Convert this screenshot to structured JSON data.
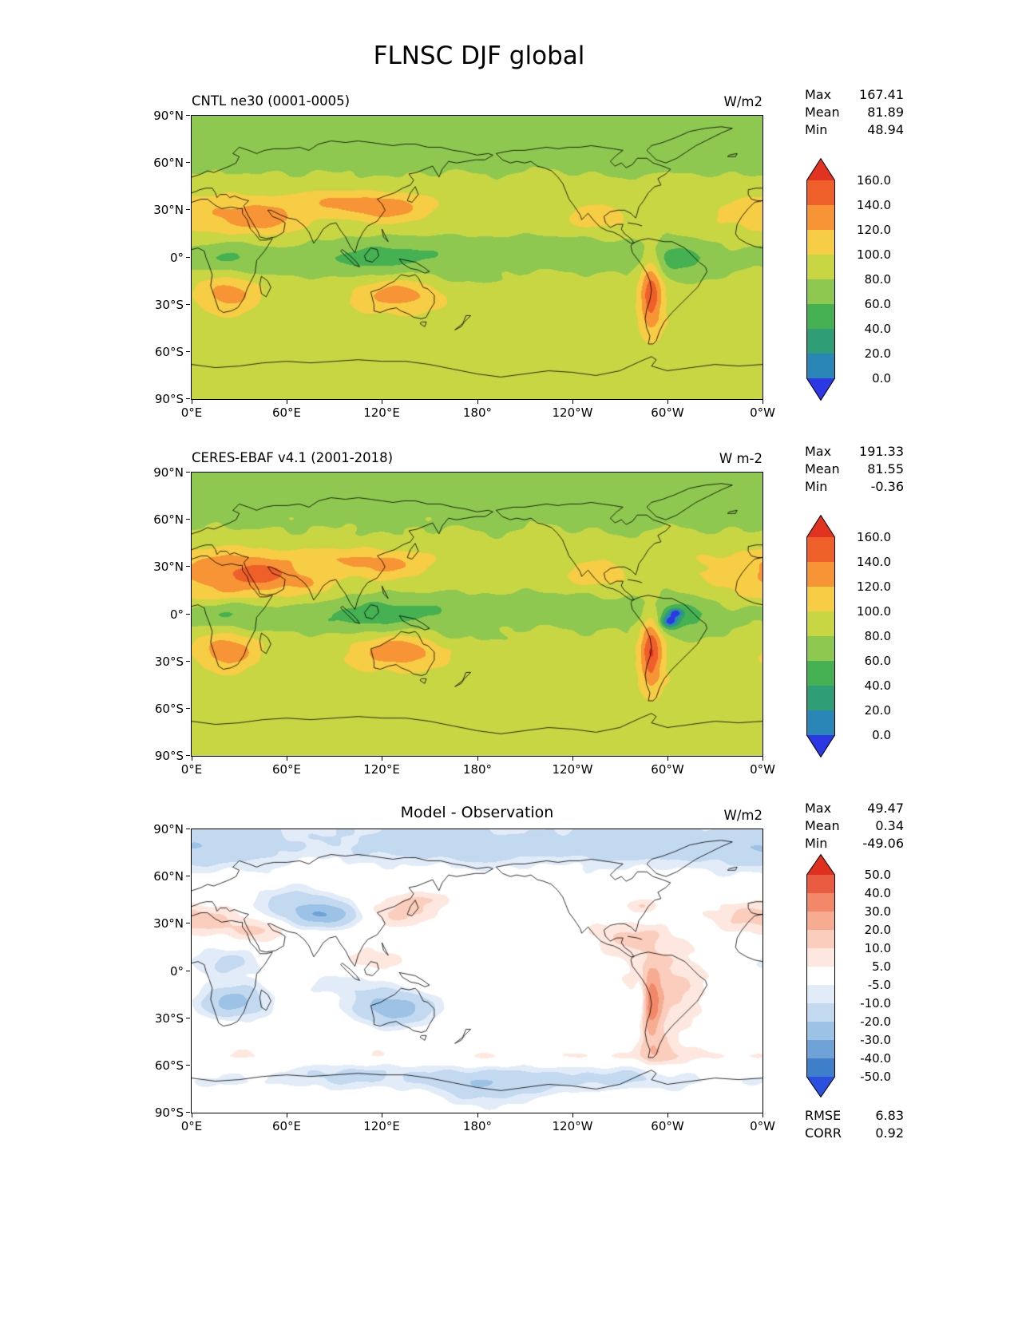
{
  "title": "FLNSC DJF global",
  "chart_data": {
    "type": "heatmap",
    "variable": "FLNSC",
    "season": "DJF",
    "region": "global",
    "x_axis": {
      "ticks": [
        "0°E",
        "60°E",
        "120°E",
        "180°",
        "120°W",
        "60°W",
        "0°W"
      ]
    },
    "y_axis": {
      "ticks": [
        "90°N",
        "60°N",
        "30°N",
        "0°",
        "30°S",
        "60°S",
        "90°S"
      ]
    },
    "panels": [
      {
        "subtitle": "CNTL ne30 (0001-0005)",
        "units": "W/m2",
        "stats": [
          {
            "label": "Max",
            "value": "167.41"
          },
          {
            "label": "Mean",
            "value": "81.89"
          },
          {
            "label": "Min",
            "value": "48.94"
          }
        ],
        "colorbar": {
          "bounds": [
            0,
            20,
            40,
            60,
            80,
            100,
            120,
            140,
            160
          ],
          "labels": [
            "160.0",
            "140.0",
            "120.0",
            "100.0",
            "80.0",
            "60.0",
            "40.0",
            "20.0",
            "0.0"
          ],
          "colors": [
            "#e23222",
            "#ef5f2a",
            "#f79435",
            "#f6cd45",
            "#c8d644",
            "#8ec850",
            "#45b152",
            "#2f9e77",
            "#2b86b8",
            "#2b38e3"
          ],
          "extend": "both"
        }
      },
      {
        "subtitle": "CERES-EBAF v4.1 (2001-2018)",
        "units": "W m-2",
        "stats": [
          {
            "label": "Max",
            "value": "191.33"
          },
          {
            "label": "Mean",
            "value": "81.55"
          },
          {
            "label": "Min",
            "value": "-0.36"
          }
        ],
        "colorbar": {
          "bounds": [
            0,
            20,
            40,
            60,
            80,
            100,
            120,
            140,
            160
          ],
          "labels": [
            "160.0",
            "140.0",
            "120.0",
            "100.0",
            "80.0",
            "60.0",
            "40.0",
            "20.0",
            "0.0"
          ],
          "colors": [
            "#e23222",
            "#ef5f2a",
            "#f79435",
            "#f6cd45",
            "#c8d644",
            "#8ec850",
            "#45b152",
            "#2f9e77",
            "#2b86b8",
            "#2b38e3"
          ],
          "extend": "both"
        }
      },
      {
        "subtitle": "Model - Observation",
        "units": "W/m2",
        "stats": [
          {
            "label": "Max",
            "value": "49.47"
          },
          {
            "label": "Mean",
            "value": "0.34"
          },
          {
            "label": "Min",
            "value": "-49.06"
          }
        ],
        "extra_stats": [
          {
            "label": "RMSE",
            "value": "6.83"
          },
          {
            "label": "CORR",
            "value": "0.92"
          }
        ],
        "colorbar": {
          "bounds": [
            -50,
            -40,
            -30,
            -20,
            -10,
            -5,
            5,
            10,
            20,
            30,
            40,
            50
          ],
          "labels": [
            "50.0",
            "40.0",
            "30.0",
            "20.0",
            "10.0",
            "5.0",
            "-5.0",
            "-10.0",
            "-20.0",
            "-30.0",
            "-40.0",
            "-50.0"
          ],
          "colors": [
            "#df2f1e",
            "#ea5c42",
            "#f28869",
            "#f7ac92",
            "#fbcdbc",
            "#fde7de",
            "#ffffff",
            "#e2ecf8",
            "#c3d9f0",
            "#9cc2e6",
            "#6fa3d8",
            "#3f7fc9",
            "#2b50e0"
          ],
          "extend": "both"
        }
      }
    ]
  }
}
